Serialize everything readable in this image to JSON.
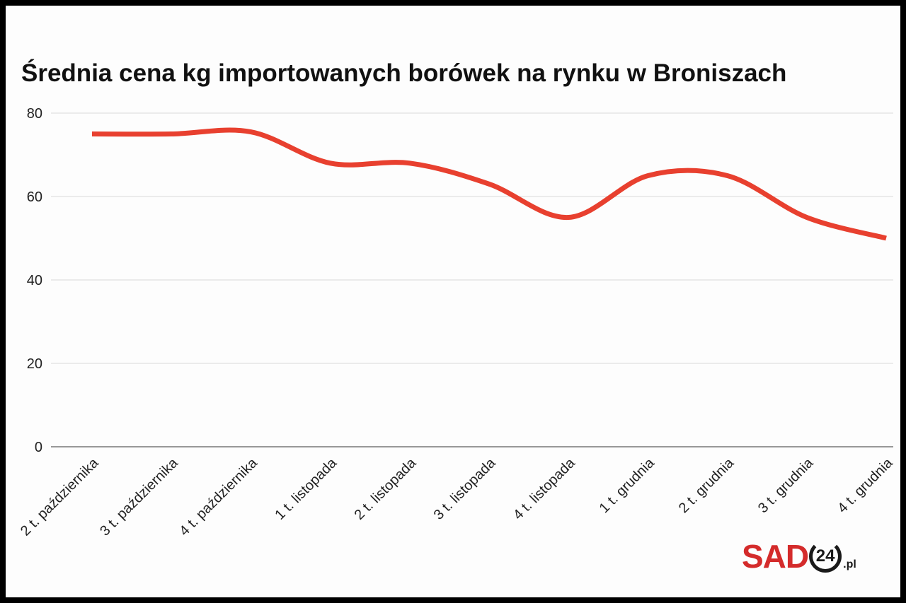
{
  "chart_data": {
    "type": "line",
    "title": "Średnia cena kg importowanych borówek na rynku w Broniszach",
    "categories": [
      "2 t. października",
      "3 t. października",
      "4 t. października",
      "1 t. listopada",
      "2 t. listopada",
      "3 t. listopada",
      "4 t. listopada",
      "1 t. grudnia",
      "2 t. grudnia",
      "3 t. grudnia",
      "4 t. grudnia"
    ],
    "values": [
      75,
      75,
      75.5,
      68,
      68,
      63,
      55,
      65,
      65,
      55,
      50
    ],
    "xlabel": "",
    "ylabel": "",
    "ylim": [
      0,
      80
    ],
    "yticks": [
      0,
      20,
      40,
      60,
      80
    ],
    "grid": true,
    "smooth": true,
    "line_color": "#e8402f"
  },
  "logo": {
    "text": "SAD24.pl",
    "part1": "SAD",
    "part2": "24",
    "part3": ".pl"
  }
}
